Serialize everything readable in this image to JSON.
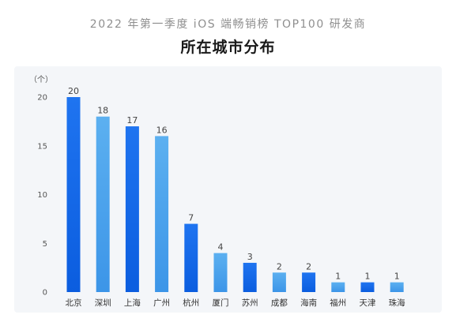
{
  "chart_data": {
    "type": "bar",
    "title": "2022 年第一季度 iOS 端畅销榜 TOP100 研发商",
    "subtitle": "所在城市分布",
    "unit_label": "（个）",
    "categories": [
      "北京",
      "深圳",
      "上海",
      "广州",
      "杭州",
      "厦门",
      "苏州",
      "成都",
      "海南",
      "福州",
      "天津",
      "珠海"
    ],
    "values": [
      20,
      18,
      17,
      16,
      7,
      4,
      3,
      2,
      2,
      1,
      1,
      1
    ],
    "data_labels": [
      "20",
      "18",
      "17",
      "16",
      "7",
      "4",
      "3",
      "2",
      "2",
      "1",
      "1",
      "1"
    ],
    "yticks": [
      0,
      5,
      10,
      15,
      20
    ],
    "ylim": [
      0,
      20
    ],
    "grid": false,
    "colors": {
      "bar_dark": "#1266e8",
      "bar_light": "#4ba3ec",
      "panel": "#f4f6f9"
    }
  }
}
